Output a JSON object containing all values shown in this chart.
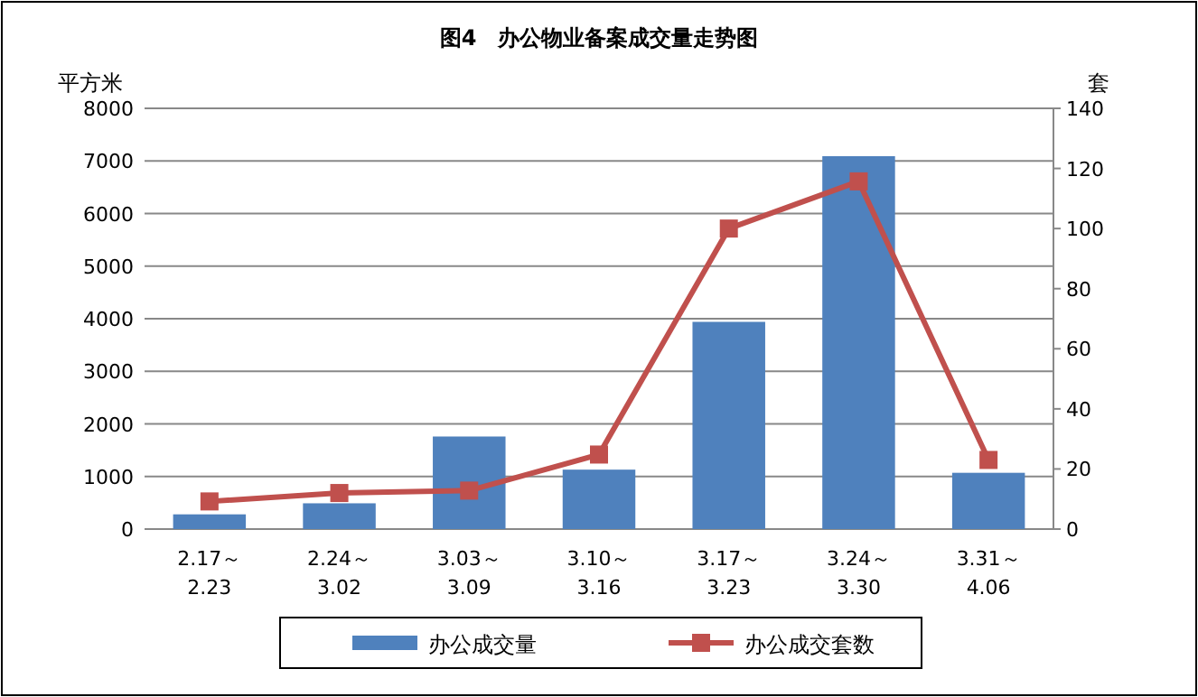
{
  "chart_data": {
    "type": "bar",
    "title": "图4　办公物业备案成交量走势图",
    "ylabel": "平方米",
    "y2label": "套",
    "categories": [
      "2.17～\n2.23",
      "2.24～\n3.02",
      "3.03～\n3.09",
      "3.10～\n3.16",
      "3.17～\n3.23",
      "3.24～\n3.30",
      "3.31～\n4.06"
    ],
    "series": [
      {
        "name": "办公成交量",
        "color": "#4f81bd",
        "values": [
          280,
          490,
          1760,
          1130,
          3940,
          7090,
          1070
        ]
      },
      {
        "name": "办公成交套数",
        "type": "line",
        "axis": "y2",
        "color": "#c0504d",
        "marker": "square",
        "values": [
          9.2,
          12,
          12.8,
          24.8,
          100,
          115.7,
          23
        ]
      }
    ],
    "ylim": [
      0,
      8000
    ],
    "yticks": [
      0,
      1000,
      2000,
      3000,
      4000,
      5000,
      6000,
      7000,
      8000
    ],
    "y2lim": [
      0,
      140
    ],
    "y2ticks": [
      0,
      20,
      40,
      60,
      80,
      100,
      120,
      140
    ],
    "grid": "y",
    "legend": "bottom"
  }
}
